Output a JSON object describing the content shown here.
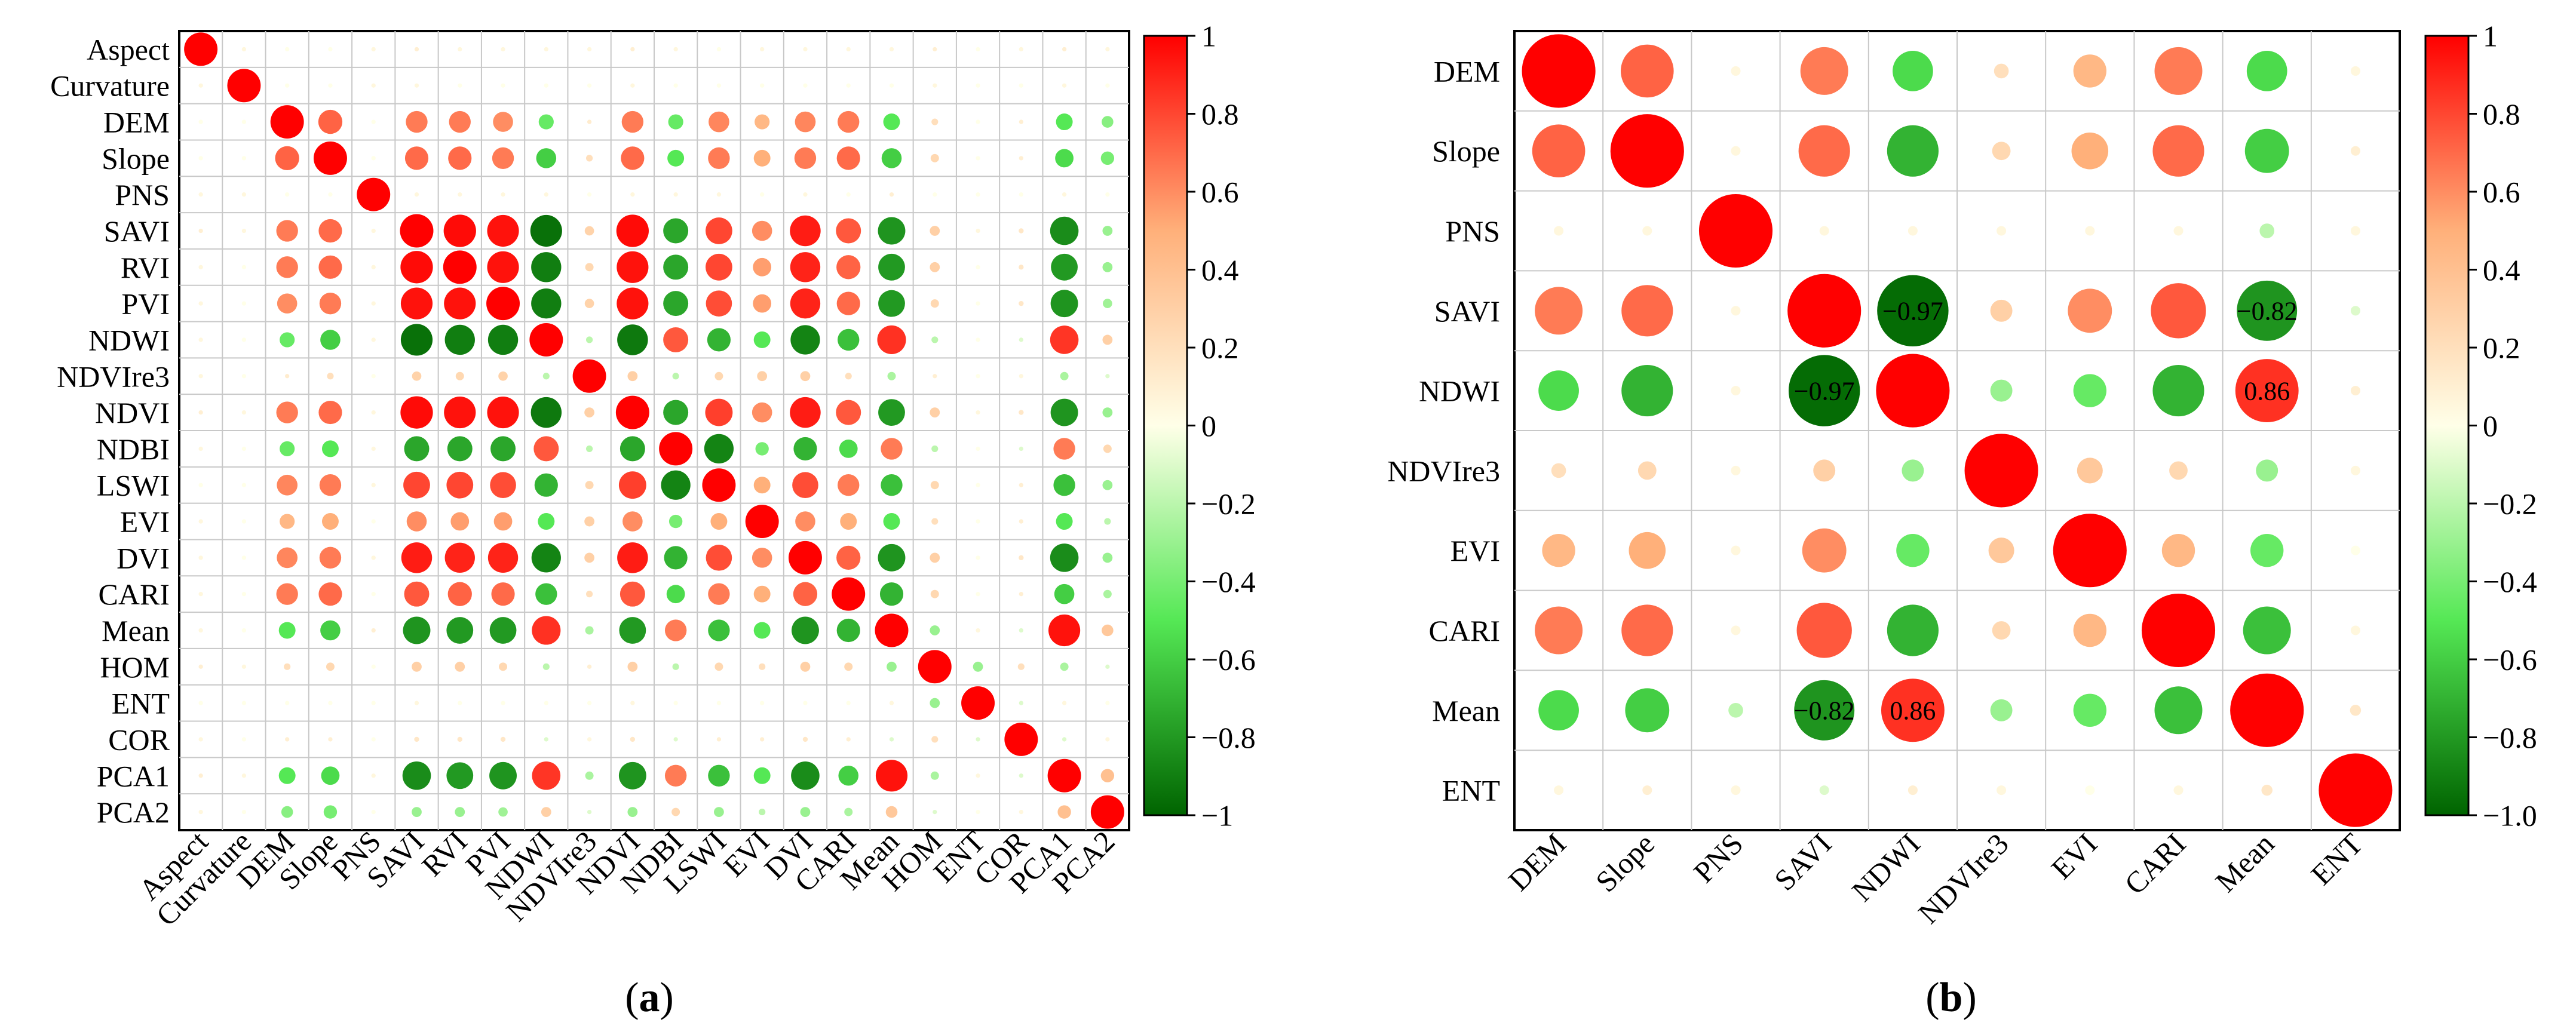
{
  "panels": [
    {
      "id": "a",
      "caption_open": "(",
      "caption_letter": "a",
      "caption_close": ")"
    },
    {
      "id": "b",
      "caption_open": "(",
      "caption_letter": "b",
      "caption_close": ")"
    }
  ],
  "colors": {
    "neg": "#006400",
    "mid_neg": "#55e855",
    "zero": "#ffffe8",
    "mid_pos": "#ffb07a",
    "pos": "#ff0000",
    "grid": "#c8c8c8",
    "frame": "#000000"
  },
  "chart_data": [
    {
      "type": "heatmap",
      "style": "circle-correlation-matrix",
      "panel": "a",
      "variables": [
        "Aspect",
        "Curvature",
        "DEM",
        "Slope",
        "PNS",
        "SAVI",
        "RVI",
        "PVI",
        "NDWI",
        "NDVIre3",
        "NDVI",
        "NDBI",
        "LSWI",
        "EVI",
        "DVI",
        "CARI",
        "Mean",
        "HOM",
        "ENT",
        "COR",
        "PCA1",
        "PCA2"
      ],
      "matrix": [
        [
          1,
          0.05,
          0,
          0,
          0.05,
          0.1,
          0.05,
          0.05,
          0.05,
          0.05,
          0.1,
          0.05,
          0,
          0.05,
          0.05,
          0.05,
          0.05,
          0.1,
          0,
          0.05,
          0.1,
          0.05
        ],
        [
          0.05,
          1,
          0,
          0,
          0.05,
          0.05,
          0,
          0,
          0,
          0,
          0.05,
          0,
          0,
          0,
          0,
          0,
          0,
          0.05,
          0,
          0,
          0.05,
          0
        ],
        [
          0,
          0,
          1,
          0.72,
          0,
          0.65,
          0.65,
          0.6,
          -0.45,
          0.12,
          0.65,
          -0.45,
          0.62,
          0.45,
          0.62,
          0.65,
          -0.5,
          0.2,
          0,
          0.1,
          -0.5,
          -0.35
        ],
        [
          0,
          0,
          0.72,
          1,
          0,
          0.7,
          0.7,
          0.65,
          -0.6,
          0.2,
          0.7,
          -0.5,
          0.65,
          0.5,
          0.65,
          0.7,
          -0.6,
          0.25,
          0,
          0.1,
          -0.55,
          -0.4
        ],
        [
          0.05,
          0.05,
          0,
          0,
          1,
          0.05,
          0.05,
          0.05,
          0.05,
          0,
          0.05,
          0.05,
          0.05,
          0,
          0.05,
          0,
          0.1,
          0,
          0,
          0,
          0.05,
          0
        ],
        [
          0.1,
          0.05,
          0.65,
          0.7,
          0.05,
          1,
          0.97,
          0.95,
          -0.95,
          0.28,
          0.97,
          -0.75,
          0.8,
          0.6,
          0.92,
          0.75,
          -0.82,
          0.3,
          0.05,
          0.15,
          -0.85,
          -0.3
        ],
        [
          0.05,
          0,
          0.65,
          0.7,
          0.05,
          0.97,
          1,
          0.95,
          -0.9,
          0.25,
          0.95,
          -0.75,
          0.8,
          0.55,
          0.9,
          0.72,
          -0.8,
          0.3,
          0,
          0.15,
          -0.8,
          -0.3
        ],
        [
          0.05,
          0,
          0.6,
          0.65,
          0.05,
          0.95,
          0.95,
          1,
          -0.9,
          0.28,
          0.95,
          -0.75,
          0.78,
          0.55,
          0.9,
          0.7,
          -0.8,
          0.25,
          0,
          0.15,
          -0.82,
          -0.28
        ],
        [
          0.05,
          0,
          -0.45,
          -0.6,
          0.05,
          -0.95,
          -0.9,
          -0.9,
          1,
          -0.2,
          -0.92,
          0.75,
          -0.7,
          -0.5,
          -0.88,
          -0.65,
          0.86,
          -0.2,
          0,
          -0.1,
          0.85,
          0.3
        ],
        [
          0.05,
          0,
          0.12,
          0.2,
          0,
          0.28,
          0.25,
          0.28,
          -0.2,
          1,
          0.3,
          -0.2,
          0.25,
          0.3,
          0.3,
          0.2,
          -0.25,
          0.1,
          0,
          0.05,
          -0.25,
          -0.1
        ],
        [
          0.1,
          0.05,
          0.65,
          0.7,
          0.05,
          0.97,
          0.95,
          0.95,
          -0.92,
          0.3,
          1,
          -0.75,
          0.82,
          0.6,
          0.92,
          0.75,
          -0.8,
          0.3,
          0.05,
          0.15,
          -0.82,
          -0.3
        ],
        [
          0.05,
          0,
          -0.45,
          -0.5,
          0.05,
          -0.75,
          -0.75,
          -0.75,
          0.75,
          -0.2,
          -0.75,
          1,
          -0.88,
          -0.4,
          -0.7,
          -0.55,
          0.65,
          -0.2,
          0,
          -0.1,
          0.65,
          0.25
        ],
        [
          0,
          0,
          0.62,
          0.65,
          0.05,
          0.8,
          0.8,
          0.78,
          -0.7,
          0.25,
          0.82,
          -0.88,
          1,
          0.5,
          0.78,
          0.65,
          -0.65,
          0.25,
          0,
          0.1,
          -0.65,
          -0.3
        ],
        [
          0.05,
          0,
          0.45,
          0.5,
          0,
          0.6,
          0.55,
          0.55,
          -0.5,
          0.3,
          0.6,
          -0.4,
          0.5,
          1,
          0.6,
          0.5,
          -0.5,
          0.2,
          0,
          0.1,
          -0.5,
          -0.2
        ],
        [
          0.05,
          0,
          0.62,
          0.65,
          0.05,
          0.92,
          0.9,
          0.9,
          -0.88,
          0.3,
          0.92,
          -0.7,
          0.78,
          0.6,
          1,
          0.72,
          -0.82,
          0.3,
          0,
          0.15,
          -0.85,
          -0.3
        ],
        [
          0.05,
          0,
          0.65,
          0.7,
          0,
          0.75,
          0.72,
          0.7,
          -0.65,
          0.2,
          0.75,
          -0.55,
          0.65,
          0.5,
          0.72,
          1,
          -0.7,
          0.25,
          0,
          0.1,
          -0.6,
          -0.25
        ],
        [
          0.05,
          0,
          -0.5,
          -0.6,
          0.1,
          -0.82,
          -0.8,
          -0.8,
          0.86,
          -0.25,
          -0.8,
          0.65,
          -0.65,
          -0.5,
          -0.82,
          -0.7,
          1,
          -0.3,
          0.05,
          -0.1,
          0.95,
          0.35
        ],
        [
          0.1,
          0.05,
          0.2,
          0.25,
          0,
          0.3,
          0.3,
          0.25,
          -0.2,
          0.1,
          0.3,
          -0.2,
          0.25,
          0.2,
          0.3,
          0.25,
          -0.3,
          1,
          -0.3,
          0.2,
          -0.25,
          -0.1
        ],
        [
          0,
          0,
          0,
          0,
          0,
          0.05,
          0,
          0,
          0,
          0,
          0.05,
          0,
          0,
          0,
          0,
          0,
          0.05,
          -0.3,
          1,
          -0.1,
          0.05,
          0
        ],
        [
          0.05,
          0,
          0.1,
          0.1,
          0,
          0.15,
          0.15,
          0.15,
          -0.1,
          0.05,
          0.15,
          -0.1,
          0.1,
          0.1,
          0.15,
          0.1,
          -0.1,
          0.2,
          -0.1,
          1,
          -0.1,
          0.05
        ],
        [
          0.1,
          0.05,
          -0.5,
          -0.55,
          0.05,
          -0.85,
          -0.8,
          -0.82,
          0.85,
          -0.25,
          -0.82,
          0.65,
          -0.65,
          -0.5,
          -0.85,
          -0.6,
          0.95,
          -0.25,
          0.05,
          -0.1,
          1,
          0.4
        ],
        [
          0.05,
          0,
          -0.35,
          -0.4,
          0,
          -0.3,
          -0.3,
          -0.28,
          0.3,
          -0.1,
          -0.3,
          0.25,
          -0.3,
          -0.2,
          -0.3,
          -0.25,
          0.35,
          -0.1,
          0,
          0.05,
          0.4,
          1
        ]
      ],
      "value_labels": [],
      "colorbar": {
        "range": [
          -1,
          1
        ],
        "ticks": [
          "1",
          "0.8",
          "0.6",
          "0.4",
          "0.2",
          "0",
          "−0.2",
          "−0.4",
          "−0.6",
          "−0.8",
          "−1"
        ]
      }
    },
    {
      "type": "heatmap",
      "style": "circle-correlation-matrix",
      "panel": "b",
      "variables": [
        "DEM",
        "Slope",
        "PNS",
        "SAVI",
        "NDWI",
        "NDVIre3",
        "EVI",
        "CARI",
        "Mean",
        "ENT"
      ],
      "matrix": [
        [
          1,
          0.72,
          0.05,
          0.65,
          -0.55,
          0.2,
          0.45,
          0.65,
          -0.55,
          0.05
        ],
        [
          0.72,
          1,
          0.05,
          0.7,
          -0.7,
          0.25,
          0.5,
          0.7,
          -0.6,
          0.1
        ],
        [
          0.05,
          0.05,
          1,
          0.05,
          0.05,
          0.05,
          0.05,
          0.05,
          -0.2,
          0.05
        ],
        [
          0.65,
          0.7,
          0.05,
          1,
          -0.97,
          0.3,
          0.6,
          0.75,
          -0.82,
          -0.1
        ],
        [
          -0.55,
          -0.7,
          0.05,
          -0.97,
          1,
          -0.3,
          -0.45,
          -0.7,
          0.86,
          0.1
        ],
        [
          0.2,
          0.25,
          0.05,
          0.3,
          -0.3,
          1,
          0.35,
          0.25,
          -0.3,
          0.05
        ],
        [
          0.45,
          0.5,
          0.05,
          0.6,
          -0.45,
          0.35,
          1,
          0.45,
          -0.45,
          0
        ],
        [
          0.65,
          0.7,
          0.05,
          0.75,
          -0.7,
          0.25,
          0.45,
          1,
          -0.65,
          0.05
        ],
        [
          -0.55,
          -0.6,
          -0.2,
          -0.82,
          0.86,
          -0.3,
          -0.45,
          -0.65,
          1,
          0.15
        ],
        [
          0.05,
          0.1,
          0.05,
          -0.1,
          0.1,
          0.05,
          0,
          0.05,
          0.15,
          1
        ]
      ],
      "value_labels": [
        {
          "row": 3,
          "col": 4,
          "text": "−0.97"
        },
        {
          "row": 3,
          "col": 8,
          "text": "−0.82"
        },
        {
          "row": 4,
          "col": 3,
          "text": "−0.97"
        },
        {
          "row": 4,
          "col": 8,
          "text": "0.86"
        },
        {
          "row": 8,
          "col": 3,
          "text": "−0.82"
        },
        {
          "row": 8,
          "col": 4,
          "text": "0.86"
        }
      ],
      "colorbar": {
        "range": [
          -1,
          1
        ],
        "ticks": [
          "1",
          "0.8",
          "0.6",
          "0.4",
          "0.2",
          "0",
          "−0.2",
          "−0.4",
          "−0.6",
          "−0.8",
          "−1.0"
        ]
      }
    }
  ]
}
